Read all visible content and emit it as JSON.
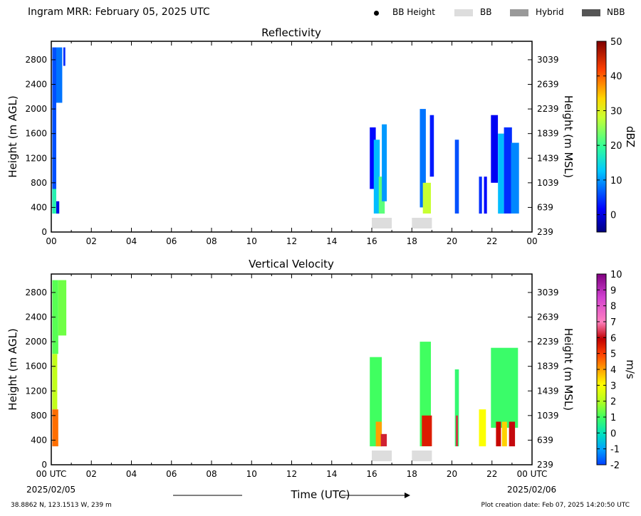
{
  "header": {
    "title": "Ingram MRR:  February 05, 2025 UTC"
  },
  "legend": [
    {
      "label": "BB Height",
      "kind": "dot",
      "color": "#000000"
    },
    {
      "label": "BB",
      "kind": "swatch",
      "color": "#dddddd"
    },
    {
      "label": "Hybrid",
      "kind": "swatch",
      "color": "#999999"
    },
    {
      "label": "NBB",
      "kind": "swatch",
      "color": "#555555"
    }
  ],
  "footer": {
    "location": "38.8862 N, 123.1513 W, 239 m",
    "creation": "Plot creation date: Feb 07, 2025 14:20:50 UTC",
    "time_label": "Time (UTC)",
    "date_start": "2025/02/05",
    "date_end": "2025/02/06"
  },
  "chart_data": [
    {
      "type": "heatmap",
      "title": "Reflectivity",
      "ylabel": "Height (m AGL)",
      "y2label": "Height (m MSL)",
      "xlim": [
        0,
        24
      ],
      "ylim": [
        0,
        3100
      ],
      "xticks": [
        "00",
        "02",
        "04",
        "06",
        "08",
        "10",
        "12",
        "14",
        "16",
        "18",
        "20",
        "22",
        "00"
      ],
      "yticks": [
        0,
        400,
        800,
        1200,
        1600,
        2000,
        2400,
        2800
      ],
      "y2ticks": [
        239,
        639,
        1039,
        1439,
        1839,
        2239,
        2639,
        3039
      ],
      "colorbar": {
        "label": "dBZ",
        "min": -5,
        "max": 50,
        "ticks": [
          0,
          10,
          20,
          30,
          40,
          50
        ]
      },
      "cells": [
        {
          "t": 0.05,
          "w": 0.2,
          "b": 350,
          "top": 3000,
          "v": 6
        },
        {
          "t": 0.25,
          "w": 0.3,
          "b": 2100,
          "top": 3000,
          "v": 8
        },
        {
          "t": 0.6,
          "w": 0.1,
          "b": 2700,
          "top": 3000,
          "v": 4
        },
        {
          "t": 0.05,
          "w": 0.2,
          "b": 300,
          "top": 700,
          "v": 18
        },
        {
          "t": 0.25,
          "w": 0.15,
          "b": 300,
          "top": 500,
          "v": 0
        },
        {
          "t": 15.9,
          "w": 0.3,
          "b": 700,
          "top": 1700,
          "v": 2
        },
        {
          "t": 16.1,
          "w": 0.3,
          "b": 300,
          "top": 1500,
          "v": 12
        },
        {
          "t": 16.35,
          "w": 0.3,
          "b": 300,
          "top": 900,
          "v": 22
        },
        {
          "t": 16.5,
          "w": 0.25,
          "b": 500,
          "top": 1750,
          "v": 10
        },
        {
          "t": 18.4,
          "w": 0.3,
          "b": 400,
          "top": 2000,
          "v": 8
        },
        {
          "t": 18.55,
          "w": 0.4,
          "b": 300,
          "top": 800,
          "v": 28
        },
        {
          "t": 18.9,
          "w": 0.2,
          "b": 900,
          "top": 1900,
          "v": 3
        },
        {
          "t": 20.15,
          "w": 0.2,
          "b": 300,
          "top": 1500,
          "v": 6
        },
        {
          "t": 21.35,
          "w": 0.15,
          "b": 300,
          "top": 900,
          "v": 4
        },
        {
          "t": 21.6,
          "w": 0.15,
          "b": 300,
          "top": 900,
          "v": 2
        },
        {
          "t": 21.95,
          "w": 0.35,
          "b": 800,
          "top": 1900,
          "v": 1
        },
        {
          "t": 22.3,
          "w": 0.3,
          "b": 300,
          "top": 1600,
          "v": 12
        },
        {
          "t": 22.6,
          "w": 0.4,
          "b": 300,
          "top": 1700,
          "v": 4
        },
        {
          "t": 22.95,
          "w": 0.4,
          "b": 300,
          "top": 1450,
          "v": 9
        }
      ],
      "bb": [
        {
          "start": 16.0,
          "end": 17.0
        },
        {
          "start": 18.0,
          "end": 19.0
        }
      ]
    },
    {
      "type": "heatmap",
      "title": "Vertical Velocity",
      "ylabel": "Height (m AGL)",
      "y2label": "Height (m MSL)",
      "xlim": [
        0,
        24
      ],
      "ylim": [
        0,
        3100
      ],
      "xticks": [
        "00 UTC",
        "02",
        "04",
        "06",
        "08",
        "10",
        "12",
        "14",
        "16",
        "18",
        "20",
        "22",
        "00 UTC"
      ],
      "yticks": [
        0,
        400,
        800,
        1200,
        1600,
        2000,
        2400,
        2800
      ],
      "y2ticks": [
        239,
        639,
        1039,
        1439,
        1839,
        2239,
        2639,
        3039
      ],
      "colorbar": {
        "label": "m/s",
        "min": -2,
        "max": 10,
        "ticks": [
          -2,
          -1,
          0,
          1,
          2,
          3,
          4,
          5,
          6,
          7,
          8,
          9,
          10
        ]
      },
      "cells": [
        {
          "t": 0.05,
          "w": 0.3,
          "b": 1800,
          "top": 3000,
          "v": 1.2
        },
        {
          "t": 0.35,
          "w": 0.4,
          "b": 2100,
          "top": 3000,
          "v": 1.4
        },
        {
          "t": 0.05,
          "w": 0.25,
          "b": 900,
          "top": 1800,
          "v": 2.2
        },
        {
          "t": 0.05,
          "w": 0.3,
          "b": 300,
          "top": 900,
          "v": 4.5
        },
        {
          "t": 15.9,
          "w": 0.6,
          "b": 300,
          "top": 1750,
          "v": 1.0
        },
        {
          "t": 16.2,
          "w": 0.3,
          "b": 300,
          "top": 700,
          "v": 4.0
        },
        {
          "t": 16.45,
          "w": 0.3,
          "b": 300,
          "top": 500,
          "v": 6.2
        },
        {
          "t": 18.4,
          "w": 0.55,
          "b": 300,
          "top": 2000,
          "v": 1.0
        },
        {
          "t": 18.5,
          "w": 0.5,
          "b": 300,
          "top": 800,
          "v": 5.5
        },
        {
          "t": 20.15,
          "w": 0.2,
          "b": 300,
          "top": 1550,
          "v": 0.8
        },
        {
          "t": 20.2,
          "w": 0.1,
          "b": 300,
          "top": 800,
          "v": 6.3
        },
        {
          "t": 21.35,
          "w": 0.35,
          "b": 300,
          "top": 900,
          "v": 3.0
        },
        {
          "t": 21.95,
          "w": 1.35,
          "b": 600,
          "top": 1900,
          "v": 0.9
        },
        {
          "t": 22.2,
          "w": 0.25,
          "b": 300,
          "top": 700,
          "v": 5.8
        },
        {
          "t": 22.5,
          "w": 0.25,
          "b": 300,
          "top": 700,
          "v": 3.5
        },
        {
          "t": 22.85,
          "w": 0.3,
          "b": 300,
          "top": 700,
          "v": 6.0
        }
      ],
      "bb": [
        {
          "start": 16.0,
          "end": 17.0
        },
        {
          "start": 18.0,
          "end": 19.0
        }
      ]
    }
  ]
}
